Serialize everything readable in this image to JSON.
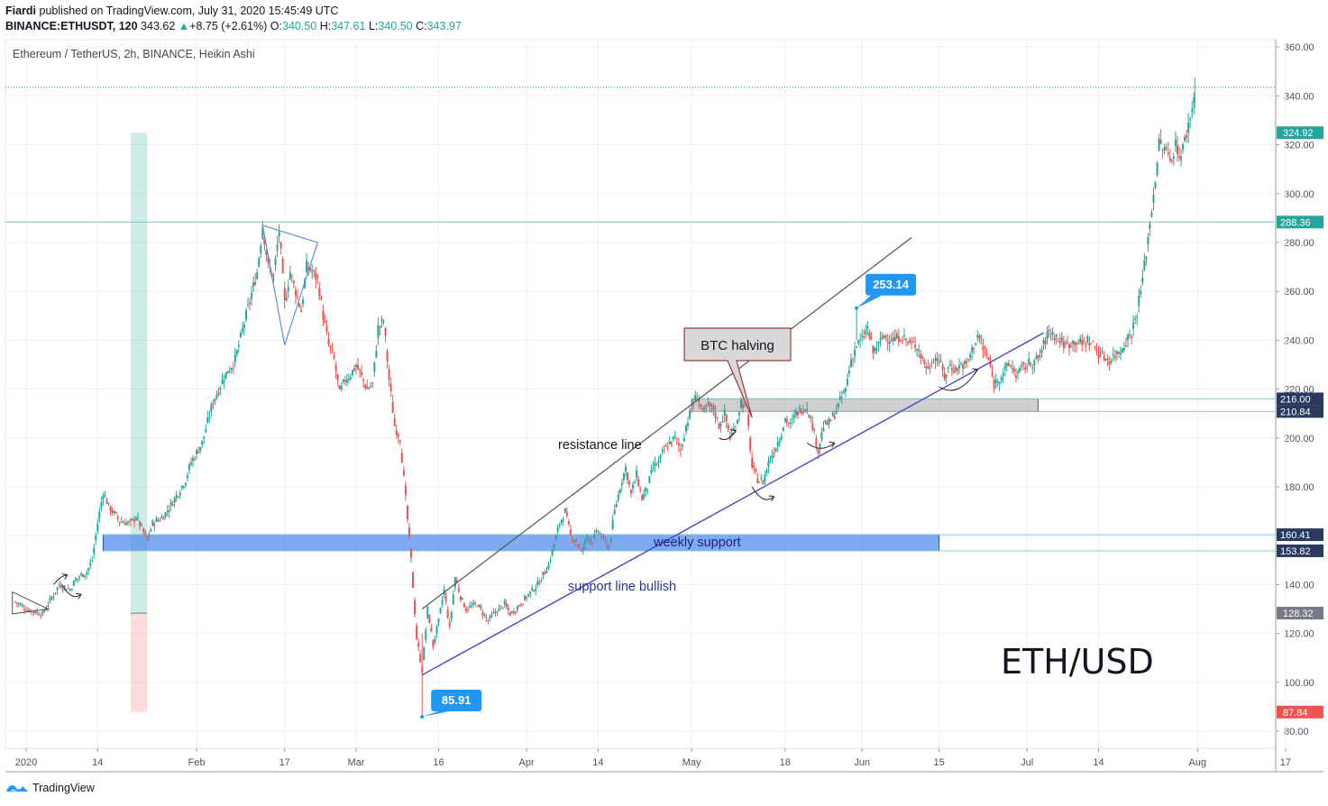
{
  "header": {
    "author": "Fiardi",
    "published_text": "published on TradingView.com, July 31, 2020 15:45:49 UTC",
    "symbol_text": "BINANCE:ETHUSDT, 120",
    "last": "343.62",
    "change_arrow": "▲",
    "change": "+8.75 (+2.61%)",
    "o_label": "O:",
    "o": "340.50",
    "h_label": "H:",
    "h": "347.61",
    "l_label": "L:",
    "l": "340.50",
    "c_label": "C:",
    "c": "343.97"
  },
  "footer": {
    "brand": "TradingView",
    "logo_icon": "tradingview-logo-icon"
  },
  "chart_data": {
    "type": "candlestick",
    "title": "Ethereum / TetherUS, 2h, BINANCE, Heikin Ashi",
    "watermark": "ETH/USD",
    "ylim": [
      73,
      363
    ],
    "x_range_days": [
      -8,
      232
    ],
    "y_ticks": [
      80,
      100,
      120,
      140,
      160,
      180,
      200,
      220,
      240,
      260,
      280,
      300,
      320,
      340,
      360
    ],
    "y_tick_labels": [
      "80.00",
      "100.00",
      "120.00",
      "140.00",
      "160.00",
      "180.00",
      "200.00",
      "220.00",
      "240.00",
      "260.00",
      "280.00",
      "300.00",
      "320.00",
      "340.00",
      "360.00"
    ],
    "x_ticks": [
      {
        "day": 0,
        "label": "2020"
      },
      {
        "day": 13,
        "label": "14"
      },
      {
        "day": 31,
        "label": "Feb"
      },
      {
        "day": 47,
        "label": "17"
      },
      {
        "day": 60,
        "label": "Mar"
      },
      {
        "day": 75,
        "label": "16"
      },
      {
        "day": 91,
        "label": "Apr"
      },
      {
        "day": 104,
        "label": "14"
      },
      {
        "day": 121,
        "label": "May"
      },
      {
        "day": 138,
        "label": "18"
      },
      {
        "day": 152,
        "label": "Jun"
      },
      {
        "day": 166,
        "label": "15"
      },
      {
        "day": 182,
        "label": "Jul"
      },
      {
        "day": 195,
        "label": "14"
      },
      {
        "day": 213,
        "label": "Aug"
      },
      {
        "day": 229,
        "label": "17"
      }
    ],
    "colors": {
      "up": "#26a69a",
      "down": "#ef5350",
      "support_zone": "#4a86e8",
      "halving_zone": "#a8a8a8",
      "price_line": "#26a69a",
      "label_blue": "#2196f3"
    },
    "price_path": [
      [
        -2,
        133
      ],
      [
        0,
        130
      ],
      [
        3,
        128
      ],
      [
        4,
        132
      ],
      [
        6,
        140
      ],
      [
        8,
        138
      ],
      [
        9,
        142
      ],
      [
        10,
        144
      ],
      [
        11,
        145
      ],
      [
        12,
        150
      ],
      [
        13,
        165
      ],
      [
        14,
        178
      ],
      [
        15,
        172
      ],
      [
        17,
        166
      ],
      [
        19,
        165
      ],
      [
        20,
        168
      ],
      [
        22,
        158
      ],
      [
        23,
        165
      ],
      [
        25,
        168
      ],
      [
        27,
        175
      ],
      [
        29,
        183
      ],
      [
        30,
        190
      ],
      [
        32,
        198
      ],
      [
        34,
        215
      ],
      [
        36,
        225
      ],
      [
        38,
        232
      ],
      [
        40,
        250
      ],
      [
        42,
        268
      ],
      [
        43,
        287
      ],
      [
        44,
        270
      ],
      [
        45,
        266
      ],
      [
        46,
        285
      ],
      [
        47,
        255
      ],
      [
        48,
        268
      ],
      [
        49,
        260
      ],
      [
        50,
        252
      ],
      [
        51,
        270
      ],
      [
        52,
        268
      ],
      [
        53,
        265
      ],
      [
        54,
        250
      ],
      [
        55,
        238
      ],
      [
        56,
        232
      ],
      [
        57,
        218
      ],
      [
        58,
        224
      ],
      [
        59,
        226
      ],
      [
        60,
        230
      ],
      [
        62,
        220
      ],
      [
        63,
        222
      ],
      [
        64,
        245
      ],
      [
        65,
        248
      ],
      [
        66,
        224
      ],
      [
        67,
        205
      ],
      [
        68,
        200
      ],
      [
        69,
        175
      ],
      [
        70,
        150
      ],
      [
        71,
        118
      ],
      [
        72,
        105
      ],
      [
        73,
        130
      ],
      [
        74,
        115
      ],
      [
        75,
        125
      ],
      [
        76,
        138
      ],
      [
        77,
        122
      ],
      [
        78,
        143
      ],
      [
        79,
        135
      ],
      [
        80,
        130
      ],
      [
        82,
        132
      ],
      [
        84,
        125
      ],
      [
        85,
        128
      ],
      [
        86,
        130
      ],
      [
        87,
        132
      ],
      [
        88,
        128
      ],
      [
        89,
        130
      ],
      [
        91,
        135
      ],
      [
        93,
        140
      ],
      [
        95,
        148
      ],
      [
        97,
        165
      ],
      [
        98,
        170
      ],
      [
        99,
        160
      ],
      [
        100,
        158
      ],
      [
        101,
        153
      ],
      [
        102,
        160
      ],
      [
        103,
        158
      ],
      [
        104,
        162
      ],
      [
        105,
        158
      ],
      [
        106,
        155
      ],
      [
        107,
        170
      ],
      [
        108,
        180
      ],
      [
        109,
        188
      ],
      [
        110,
        177
      ],
      [
        111,
        185
      ],
      [
        112,
        175
      ],
      [
        113,
        180
      ],
      [
        114,
        188
      ],
      [
        115,
        190
      ],
      [
        116,
        195
      ],
      [
        117,
        198
      ],
      [
        118,
        200
      ],
      [
        119,
        195
      ],
      [
        120,
        205
      ],
      [
        121,
        212
      ],
      [
        122,
        218
      ],
      [
        123,
        210
      ],
      [
        124,
        213
      ],
      [
        125,
        212
      ],
      [
        126,
        205
      ],
      [
        127,
        210
      ],
      [
        128,
        200
      ],
      [
        129,
        205
      ],
      [
        130,
        215
      ],
      [
        131,
        212
      ],
      [
        132,
        188
      ],
      [
        133,
        183
      ],
      [
        134,
        182
      ],
      [
        135,
        190
      ],
      [
        136,
        195
      ],
      [
        137,
        200
      ],
      [
        138,
        208
      ],
      [
        139,
        205
      ],
      [
        140,
        210
      ],
      [
        141,
        212
      ],
      [
        142,
        213
      ],
      [
        143,
        205
      ],
      [
        144,
        195
      ],
      [
        145,
        205
      ],
      [
        146,
        206
      ],
      [
        147,
        210
      ],
      [
        148,
        215
      ],
      [
        149,
        220
      ],
      [
        150,
        232
      ],
      [
        151,
        238
      ],
      [
        152,
        240
      ],
      [
        153,
        245
      ],
      [
        154,
        235
      ],
      [
        155,
        238
      ],
      [
        156,
        242
      ],
      [
        157,
        241
      ],
      [
        158,
        240
      ],
      [
        159,
        242
      ],
      [
        160,
        240
      ],
      [
        161,
        238
      ],
      [
        162,
        238
      ],
      [
        163,
        232
      ],
      [
        164,
        228
      ],
      [
        165,
        233
      ],
      [
        166,
        232
      ],
      [
        167,
        225
      ],
      [
        168,
        230
      ],
      [
        169,
        228
      ],
      [
        170,
        230
      ],
      [
        171,
        230
      ],
      [
        172,
        236
      ],
      [
        173,
        242
      ],
      [
        174,
        236
      ],
      [
        175,
        232
      ],
      [
        176,
        222
      ],
      [
        177,
        225
      ],
      [
        178,
        228
      ],
      [
        179,
        230
      ],
      [
        180,
        226
      ],
      [
        181,
        228
      ],
      [
        182,
        230
      ],
      [
        183,
        231
      ],
      [
        184,
        232
      ],
      [
        185,
        238
      ],
      [
        186,
        244
      ],
      [
        187,
        242
      ],
      [
        188,
        240
      ],
      [
        189,
        238
      ],
      [
        190,
        239
      ],
      [
        191,
        240
      ],
      [
        192,
        238
      ],
      [
        193,
        240
      ],
      [
        194,
        238
      ],
      [
        195,
        235
      ],
      [
        196,
        233
      ],
      [
        197,
        232
      ],
      [
        198,
        234
      ],
      [
        199,
        236
      ],
      [
        200,
        240
      ],
      [
        201,
        243
      ],
      [
        202,
        252
      ],
      [
        203,
        265
      ],
      [
        204,
        282
      ],
      [
        205,
        300
      ],
      [
        206,
        320
      ],
      [
        207,
        318
      ],
      [
        208,
        314
      ],
      [
        209,
        320
      ],
      [
        210,
        315
      ],
      [
        211,
        325
      ],
      [
        212,
        335
      ],
      [
        212.5,
        343.6
      ]
    ],
    "hlines": [
      {
        "price": 288.36,
        "label": "288.36",
        "badge": "#26a69a"
      },
      {
        "price": 216.0,
        "label": "216.00",
        "badge": "#2a3a5e"
      },
      {
        "price": 210.84,
        "label": "210.84",
        "badge": "#2a3a5e"
      },
      {
        "price": 160.41,
        "label": "160.41",
        "badge": "#2a3a5e"
      },
      {
        "price": 153.82,
        "label": "153.82",
        "badge": "#2a3a5e"
      }
    ],
    "axis_badges": [
      {
        "price": 324.92,
        "label": "324.92",
        "color": "#26a69a"
      },
      {
        "price": 128.32,
        "label": "128.32",
        "color": "#787b86"
      },
      {
        "price": 87.84,
        "label": "87.84",
        "color": "#ef5350"
      }
    ],
    "last_price": 343.6,
    "annotations": [
      {
        "type": "callout",
        "label": "253.14",
        "day": 151,
        "price": 253.14
      },
      {
        "type": "callout",
        "label": "85.91",
        "day": 72,
        "price": 85.91
      },
      {
        "type": "note",
        "label": "BTC halving",
        "day": 132,
        "price": 212
      }
    ],
    "text_labels": {
      "resistance": "resistance line",
      "support": "support line bullish",
      "weekly": "weekly support"
    },
    "lines": {
      "resistance_line": [
        [
          72,
          130
        ],
        [
          161,
          282
        ]
      ],
      "support_line": [
        [
          72,
          103
        ],
        [
          185,
          243
        ]
      ]
    },
    "zones": {
      "weekly_support": {
        "from_day": 14,
        "to_day": 166,
        "top": 160.41,
        "bottom": 153.82
      },
      "halving": {
        "from_day": 121,
        "to_day": 184,
        "top": 216.0,
        "bottom": 210.84
      },
      "position_green": {
        "from_day": 19,
        "to_day": 22,
        "top": 324.92,
        "bottom": 128.32
      },
      "position_red": {
        "from_day": 19,
        "to_day": 22,
        "top": 128.32,
        "bottom": 87.84
      }
    },
    "triangle": [
      [
        43,
        287
      ],
      [
        53,
        280
      ],
      [
        47,
        238
      ]
    ]
  }
}
